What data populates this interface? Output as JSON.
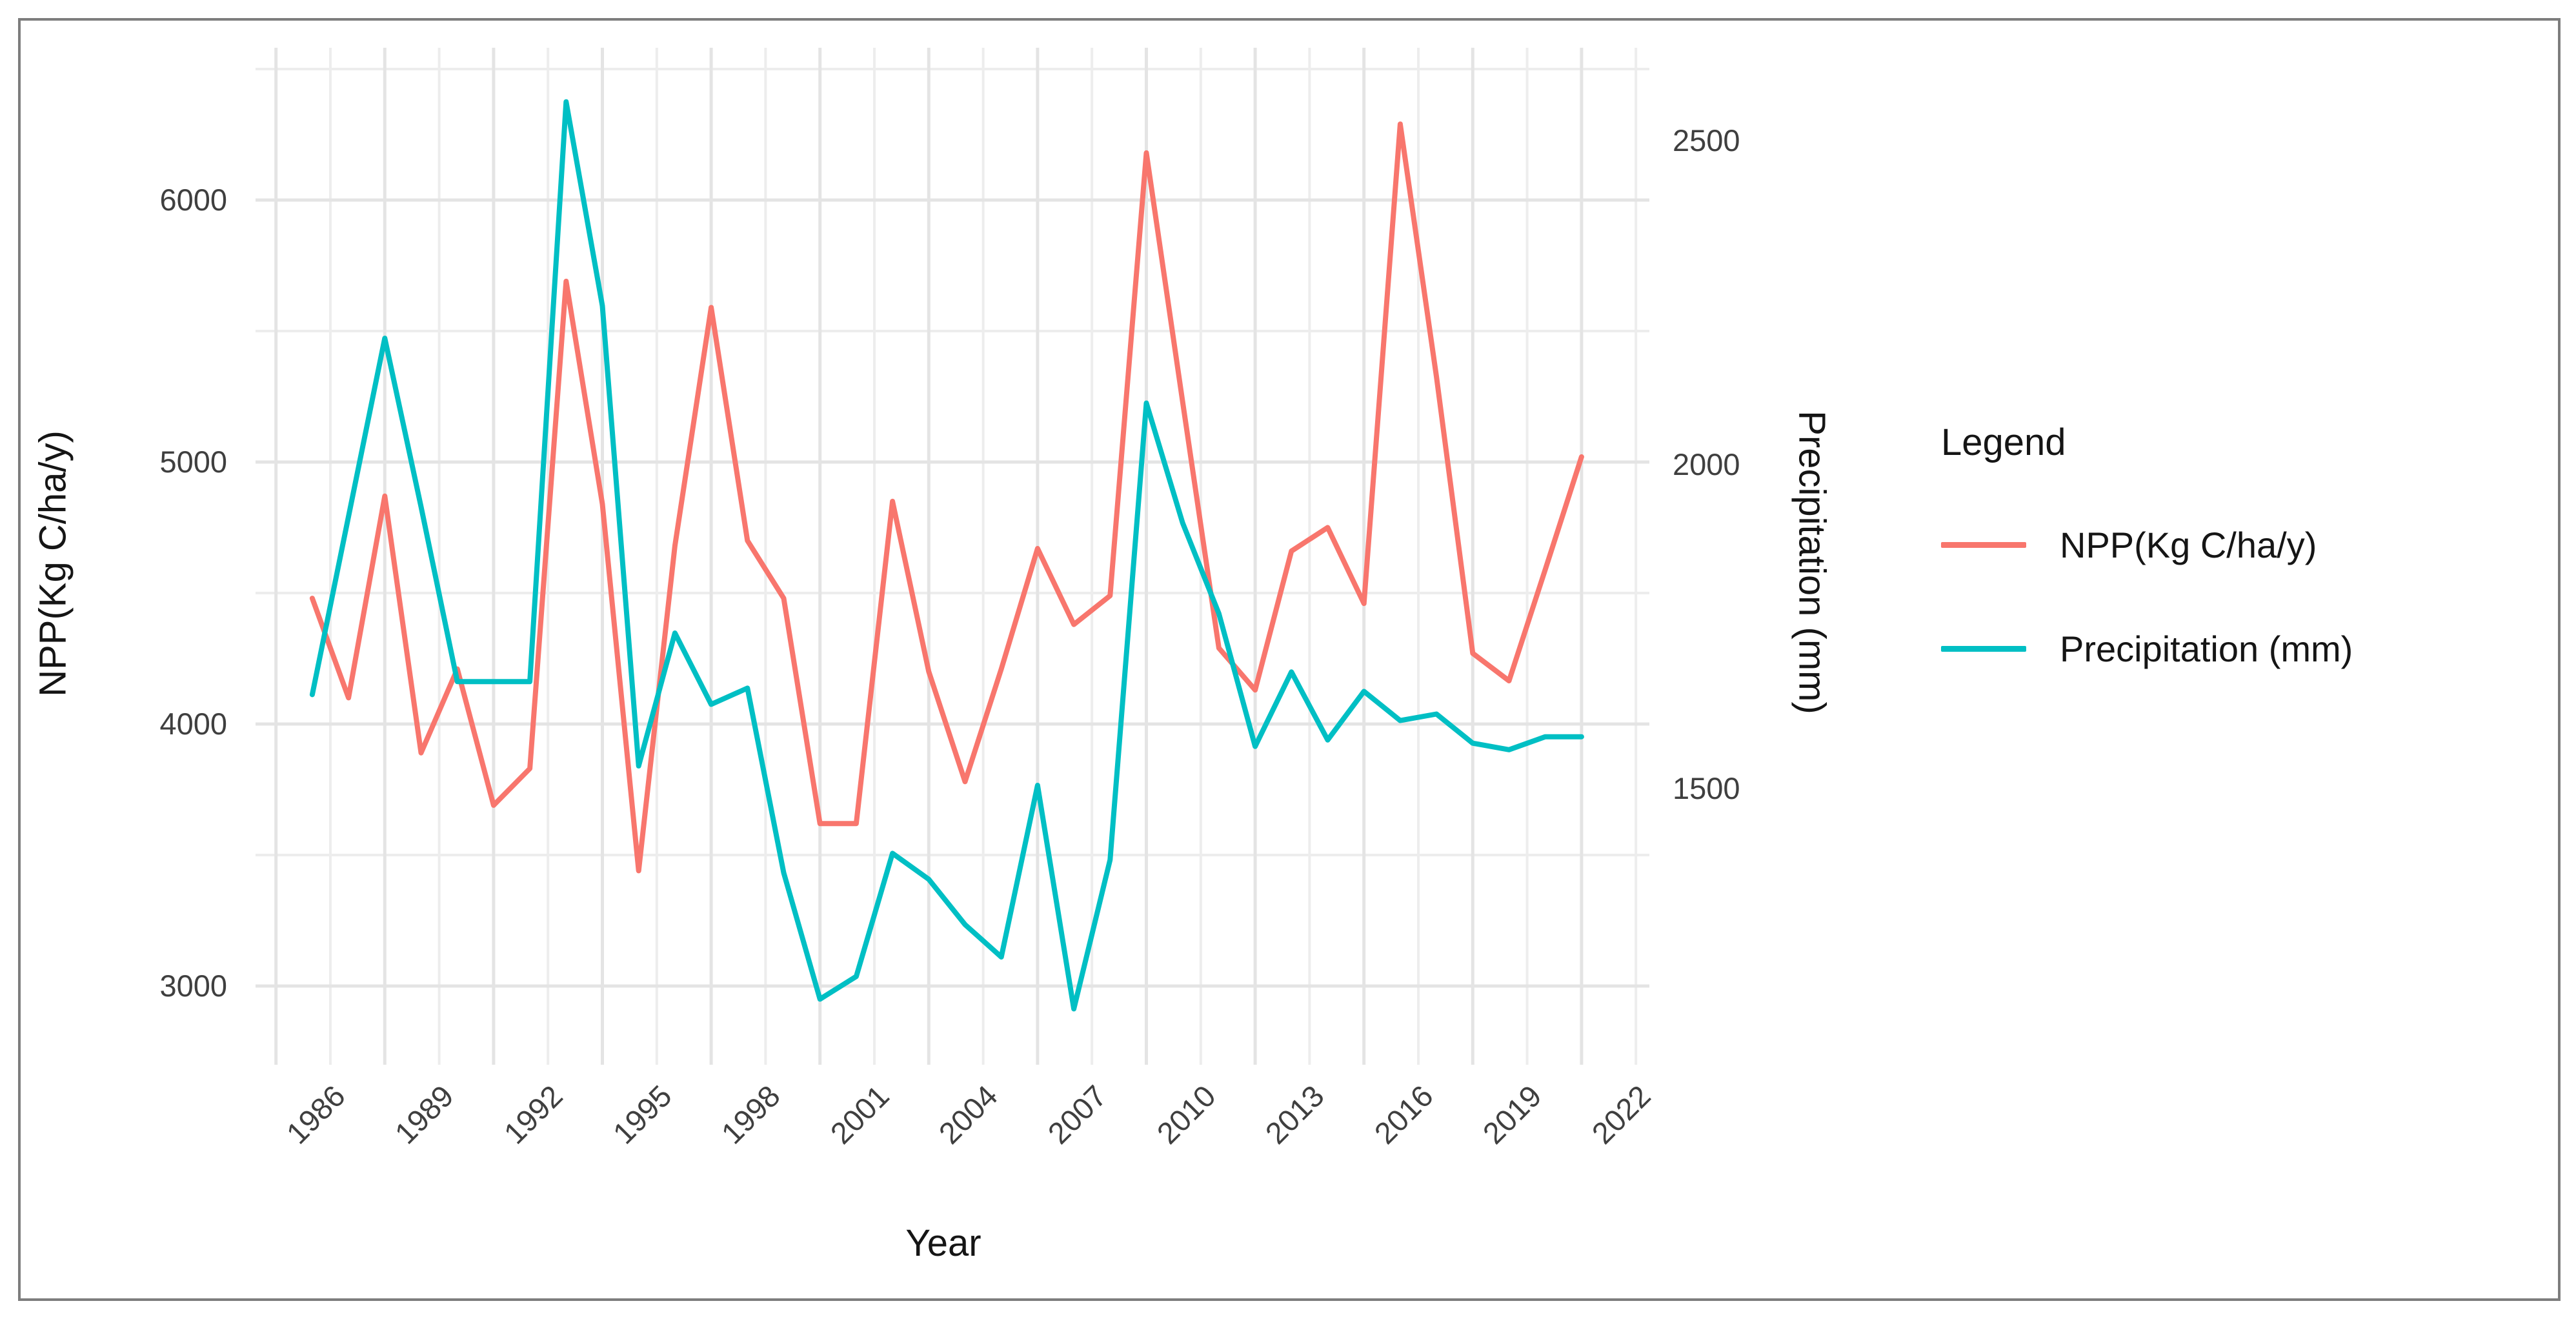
{
  "figure": {
    "background": "#ffffff",
    "border_color": "#7d7d7d"
  },
  "axes": {
    "x_title": "Year",
    "y_left_title": "NPP(Kg C/ha/y)",
    "y_right_title": "Precipitation (mm)",
    "x_tick_labels": [
      "1986",
      "1989",
      "1992",
      "1995",
      "1998",
      "2001",
      "2004",
      "2007",
      "2010",
      "2013",
      "2016",
      "2019",
      "2022"
    ],
    "y_left_tick_labels": [
      "6000",
      "5000",
      "4000",
      "3000"
    ],
    "y_right_tick_labels": [
      "2500",
      "2000",
      "1500"
    ]
  },
  "legend": {
    "title": "Legend",
    "entries": [
      {
        "label": "NPP(Kg C/ha/y)",
        "color": "#F8766D"
      },
      {
        "label": "Precipitation (mm)",
        "color": "#00BFC4"
      }
    ]
  },
  "chart_data": {
    "type": "line",
    "title": "",
    "x": [
      1987,
      1988,
      1989,
      1990,
      1991,
      1992,
      1993,
      1994,
      1995,
      1996,
      1997,
      1998,
      1999,
      2000,
      2001,
      2002,
      2003,
      2004,
      2005,
      2006,
      2007,
      2008,
      2009,
      2010,
      2011,
      2012,
      2013,
      2014,
      2015,
      2016,
      2017,
      2018,
      2019,
      2020,
      2021,
      2022
    ],
    "series": [
      {
        "name": "NPP(Kg C/ha/y)",
        "axis": "left",
        "color": "#F8766D",
        "values": [
          4480,
          4100,
          4870,
          3890,
          4210,
          3690,
          3830,
          5690,
          4840,
          3440,
          4680,
          5590,
          4700,
          4480,
          3620,
          3620,
          4850,
          4200,
          3780,
          4210,
          4670,
          4380,
          4490,
          6180,
          5230,
          4290,
          4130,
          4660,
          4750,
          4460,
          6290,
          5325,
          4270,
          4165,
          4590,
          5020
        ]
      },
      {
        "name": "Precipitation (mm)",
        "axis": "right",
        "color": "#00BFC4",
        "values": [
          1645,
          1920,
          2195,
          1935,
          1665,
          1665,
          1665,
          2560,
          2245,
          1535,
          1740,
          1630,
          1655,
          1370,
          1175,
          1210,
          1400,
          1360,
          1290,
          1240,
          1505,
          1160,
          1390,
          2095,
          1910,
          1770,
          1565,
          1680,
          1575,
          1650,
          1605,
          1615,
          1570,
          1560,
          1580,
          1580
        ]
      }
    ],
    "xlabel": "Year",
    "ylabel_left": "NPP(Kg C/ha/y)",
    "ylabel_right": "Precipitation (mm)",
    "x_major_ticks": [
      1986,
      1989,
      1992,
      1995,
      1998,
      2001,
      2004,
      2007,
      2010,
      2013,
      2016,
      2019,
      2022
    ],
    "y_left_ticks": [
      6000,
      5000,
      4000,
      3000
    ],
    "y_right_ticks": [
      2500,
      2000,
      1500
    ],
    "y_left_range": [
      2700,
      6590
    ],
    "y_right_range": [
      1075,
      2640
    ],
    "grid": "major and minor light-gray gridlines on white panel",
    "legend_position": "right"
  }
}
